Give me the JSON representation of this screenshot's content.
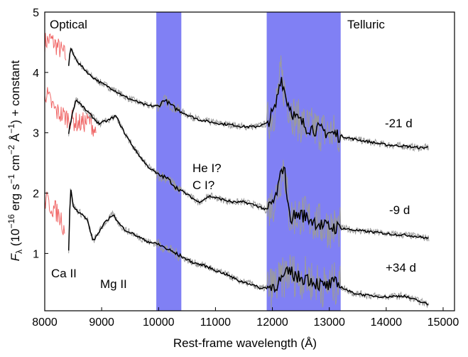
{
  "chart_data": {
    "type": "line",
    "xlabel": "Rest-frame wavelength (Å)",
    "ylabel": {
      "base": "F",
      "sub": "λ",
      "text_before_exp1": " (10",
      "exp1": "−16",
      "text_erg": " erg s",
      "exp2": "−1",
      "text_cm": " cm",
      "exp3": "−2",
      "text_ang": " Å",
      "exp4": "−1",
      "text_end": ") + constant"
    },
    "xlim": [
      8000,
      15200
    ],
    "ylim": [
      0.05,
      5
    ],
    "x_ticks": [
      8000,
      9000,
      10000,
      11000,
      12000,
      13000,
      14000,
      15000
    ],
    "y_ticks": [
      1,
      2,
      3,
      4,
      5
    ],
    "bands": [
      {
        "label": "",
        "from": 9960,
        "to": 10400,
        "color": "#6a6af2"
      },
      {
        "label": "Telluric",
        "from": 11900,
        "to": 13200,
        "color": "#6a6af2"
      }
    ],
    "region_labels": [
      {
        "text": "Optical",
        "color": "#f06767"
      },
      {
        "text": "Telluric",
        "color": "#7a7aef"
      }
    ],
    "series": [
      {
        "name": "-21 d",
        "optical": [
          [
            8000,
            4.5
          ],
          [
            8100,
            4.55
          ],
          [
            8200,
            4.45
          ],
          [
            8300,
            4.35
          ],
          [
            8380,
            4.25
          ]
        ],
        "nir": [
          [
            8420,
            4.1
          ],
          [
            8450,
            4.42
          ],
          [
            8500,
            4.3
          ],
          [
            8600,
            4.15
          ],
          [
            8800,
            3.95
          ],
          [
            9000,
            3.82
          ],
          [
            9200,
            3.72
          ],
          [
            9400,
            3.6
          ],
          [
            9600,
            3.52
          ],
          [
            9800,
            3.45
          ],
          [
            10000,
            3.44
          ],
          [
            10100,
            3.55
          ],
          [
            10300,
            3.4
          ],
          [
            10500,
            3.3
          ],
          [
            10700,
            3.22
          ],
          [
            10900,
            3.18
          ],
          [
            11100,
            3.15
          ],
          [
            11300,
            3.13
          ],
          [
            11500,
            3.1
          ],
          [
            11700,
            3.1
          ],
          [
            11900,
            3.15
          ],
          [
            12050,
            3.4
          ],
          [
            12150,
            3.95
          ],
          [
            12250,
            3.55
          ],
          [
            12400,
            3.25
          ],
          [
            12600,
            3.1
          ],
          [
            12800,
            3.05
          ],
          [
            13000,
            3.0
          ],
          [
            13200,
            2.95
          ],
          [
            13400,
            2.9
          ],
          [
            13700,
            2.85
          ],
          [
            14000,
            2.8
          ],
          [
            14300,
            2.78
          ],
          [
            14600,
            2.75
          ],
          [
            14750,
            2.76
          ]
        ]
      },
      {
        "name": "-9 d",
        "optical": [
          [
            8000,
            3.7
          ],
          [
            8100,
            3.5
          ],
          [
            8200,
            3.35
          ],
          [
            8300,
            3.3
          ],
          [
            8400,
            3.25
          ],
          [
            8500,
            3.2
          ],
          [
            8600,
            3.15
          ],
          [
            8800,
            3.2
          ],
          [
            8900,
            3.0
          ]
        ],
        "nir": [
          [
            8420,
            3.0
          ],
          [
            8480,
            3.3
          ],
          [
            8550,
            3.55
          ],
          [
            8650,
            3.45
          ],
          [
            8800,
            3.3
          ],
          [
            8950,
            3.15
          ],
          [
            9100,
            3.2
          ],
          [
            9250,
            3.28
          ],
          [
            9400,
            3.0
          ],
          [
            9600,
            2.7
          ],
          [
            9800,
            2.45
          ],
          [
            10000,
            2.3
          ],
          [
            10150,
            2.25
          ],
          [
            10300,
            2.1
          ],
          [
            10500,
            1.98
          ],
          [
            10700,
            1.85
          ],
          [
            10900,
            1.95
          ],
          [
            11100,
            1.9
          ],
          [
            11300,
            1.85
          ],
          [
            11500,
            1.85
          ],
          [
            11700,
            1.8
          ],
          [
            11900,
            1.72
          ],
          [
            12050,
            1.9
          ],
          [
            12200,
            2.5
          ],
          [
            12300,
            1.6
          ],
          [
            12500,
            1.65
          ],
          [
            12700,
            1.55
          ],
          [
            12900,
            1.45
          ],
          [
            13200,
            1.42
          ],
          [
            13500,
            1.38
          ],
          [
            13800,
            1.35
          ],
          [
            14100,
            1.32
          ],
          [
            14400,
            1.3
          ],
          [
            14750,
            1.25
          ]
        ]
      },
      {
        "name": "+34 d",
        "optical": [
          [
            8000,
            1.9
          ],
          [
            8100,
            1.8
          ],
          [
            8200,
            1.7
          ],
          [
            8300,
            1.55
          ],
          [
            8350,
            1.35
          ]
        ],
        "nir": [
          [
            8420,
            1.05
          ],
          [
            8450,
            2.1
          ],
          [
            8500,
            1.8
          ],
          [
            8560,
            1.72
          ],
          [
            8650,
            1.65
          ],
          [
            8750,
            1.55
          ],
          [
            8850,
            1.2
          ],
          [
            8950,
            1.35
          ],
          [
            9050,
            1.5
          ],
          [
            9200,
            1.65
          ],
          [
            9300,
            1.5
          ],
          [
            9400,
            1.4
          ],
          [
            9600,
            1.3
          ],
          [
            9800,
            1.2
          ],
          [
            10000,
            1.15
          ],
          [
            10200,
            1.05
          ],
          [
            10400,
            0.95
          ],
          [
            10600,
            0.85
          ],
          [
            10800,
            0.8
          ],
          [
            11000,
            0.72
          ],
          [
            11200,
            0.65
          ],
          [
            11400,
            0.55
          ],
          [
            11600,
            0.5
          ],
          [
            11800,
            0.42
          ],
          [
            12000,
            0.45
          ],
          [
            12150,
            0.55
          ],
          [
            12300,
            0.7
          ],
          [
            12450,
            0.6
          ],
          [
            12600,
            0.6
          ],
          [
            12900,
            0.45
          ],
          [
            13100,
            0.5
          ],
          [
            13400,
            0.35
          ],
          [
            13700,
            0.3
          ],
          [
            14000,
            0.28
          ],
          [
            14300,
            0.3
          ],
          [
            14600,
            0.2
          ],
          [
            14750,
            0.15
          ]
        ]
      }
    ],
    "epoch_labels": [
      "-21 d",
      "-9 d",
      "+34 d"
    ],
    "annotations": [
      "Ca II",
      "Mg II",
      "He I?",
      "C I?"
    ],
    "colors": {
      "optical": "#f06767",
      "raw": "#9b9b9b",
      "smoothed": "#000000",
      "band": "#6a6af2"
    }
  }
}
